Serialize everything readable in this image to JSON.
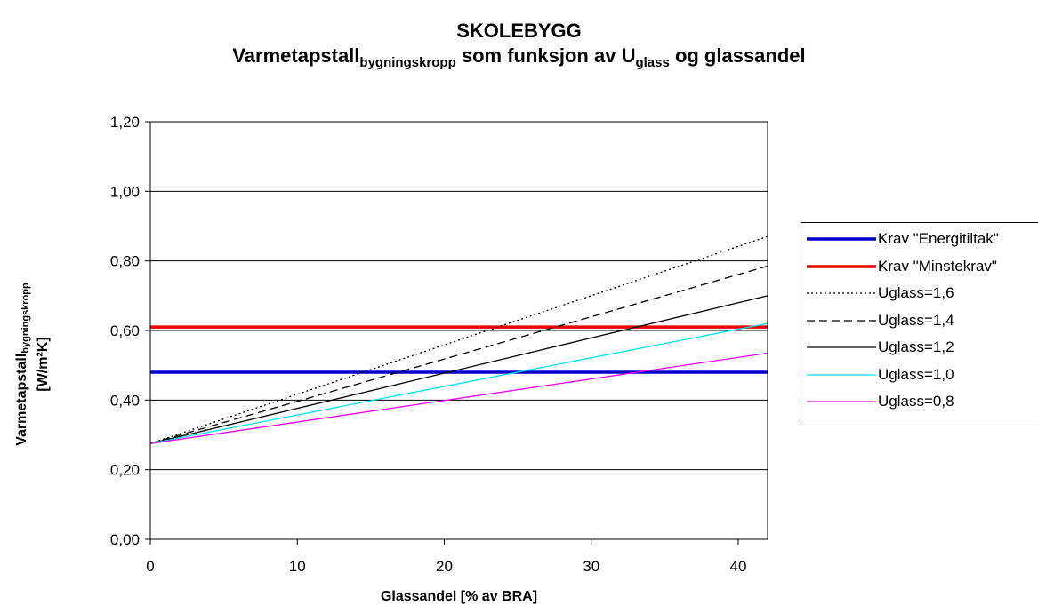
{
  "chart_data": {
    "type": "line",
    "title": "SKOLEBYGG",
    "subtitle": {
      "part1": "Varmetapstall",
      "sub1": "bygningskropp",
      "part2": " som funksjon av U",
      "sub2": "glass",
      "part3": " og glassandel"
    },
    "xlabel": "Glassandel [% av BRA]",
    "ylabel": {
      "main": "Varmetapstall",
      "sub": "bygningskropp",
      "unit": "[W/m²K]"
    },
    "xlim": [
      0,
      42
    ],
    "ylim": [
      0,
      1.2
    ],
    "x_ticks": [
      0,
      10,
      20,
      30,
      40
    ],
    "y_ticks": [
      "0,00",
      "0,20",
      "0,40",
      "0,60",
      "0,80",
      "1,00",
      "1,20"
    ],
    "y_tick_values": [
      0,
      0.2,
      0.4,
      0.6,
      0.8,
      1.0,
      1.2
    ],
    "grid": "horizontal",
    "legend_position": "right",
    "series": [
      {
        "name": "Krav \"Energitiltak\"",
        "color": "#0000cc",
        "style": "solid-thick",
        "x": [
          0,
          42
        ],
        "y": [
          0.48,
          0.48
        ]
      },
      {
        "name": "Krav \"Minstekrav\"",
        "color": "#ee0000",
        "style": "solid-thick",
        "x": [
          0,
          42
        ],
        "y": [
          0.61,
          0.61
        ]
      },
      {
        "name": "Uglass=1,6",
        "color": "#000000",
        "style": "dotted",
        "x": [
          0,
          42
        ],
        "y": [
          0.275,
          0.87
        ]
      },
      {
        "name": "Uglass=1,4",
        "color": "#000000",
        "style": "dashed",
        "x": [
          0,
          42
        ],
        "y": [
          0.275,
          0.785
        ]
      },
      {
        "name": "Uglass=1,2",
        "color": "#000000",
        "style": "solid",
        "x": [
          0,
          42
        ],
        "y": [
          0.275,
          0.7
        ]
      },
      {
        "name": "Uglass=1,0",
        "color": "#00e5ee",
        "style": "solid",
        "x": [
          0,
          42
        ],
        "y": [
          0.275,
          0.62
        ]
      },
      {
        "name": "Uglass=0,8",
        "color": "#ee00ee",
        "style": "solid",
        "x": [
          0,
          42
        ],
        "y": [
          0.275,
          0.535
        ]
      }
    ]
  }
}
